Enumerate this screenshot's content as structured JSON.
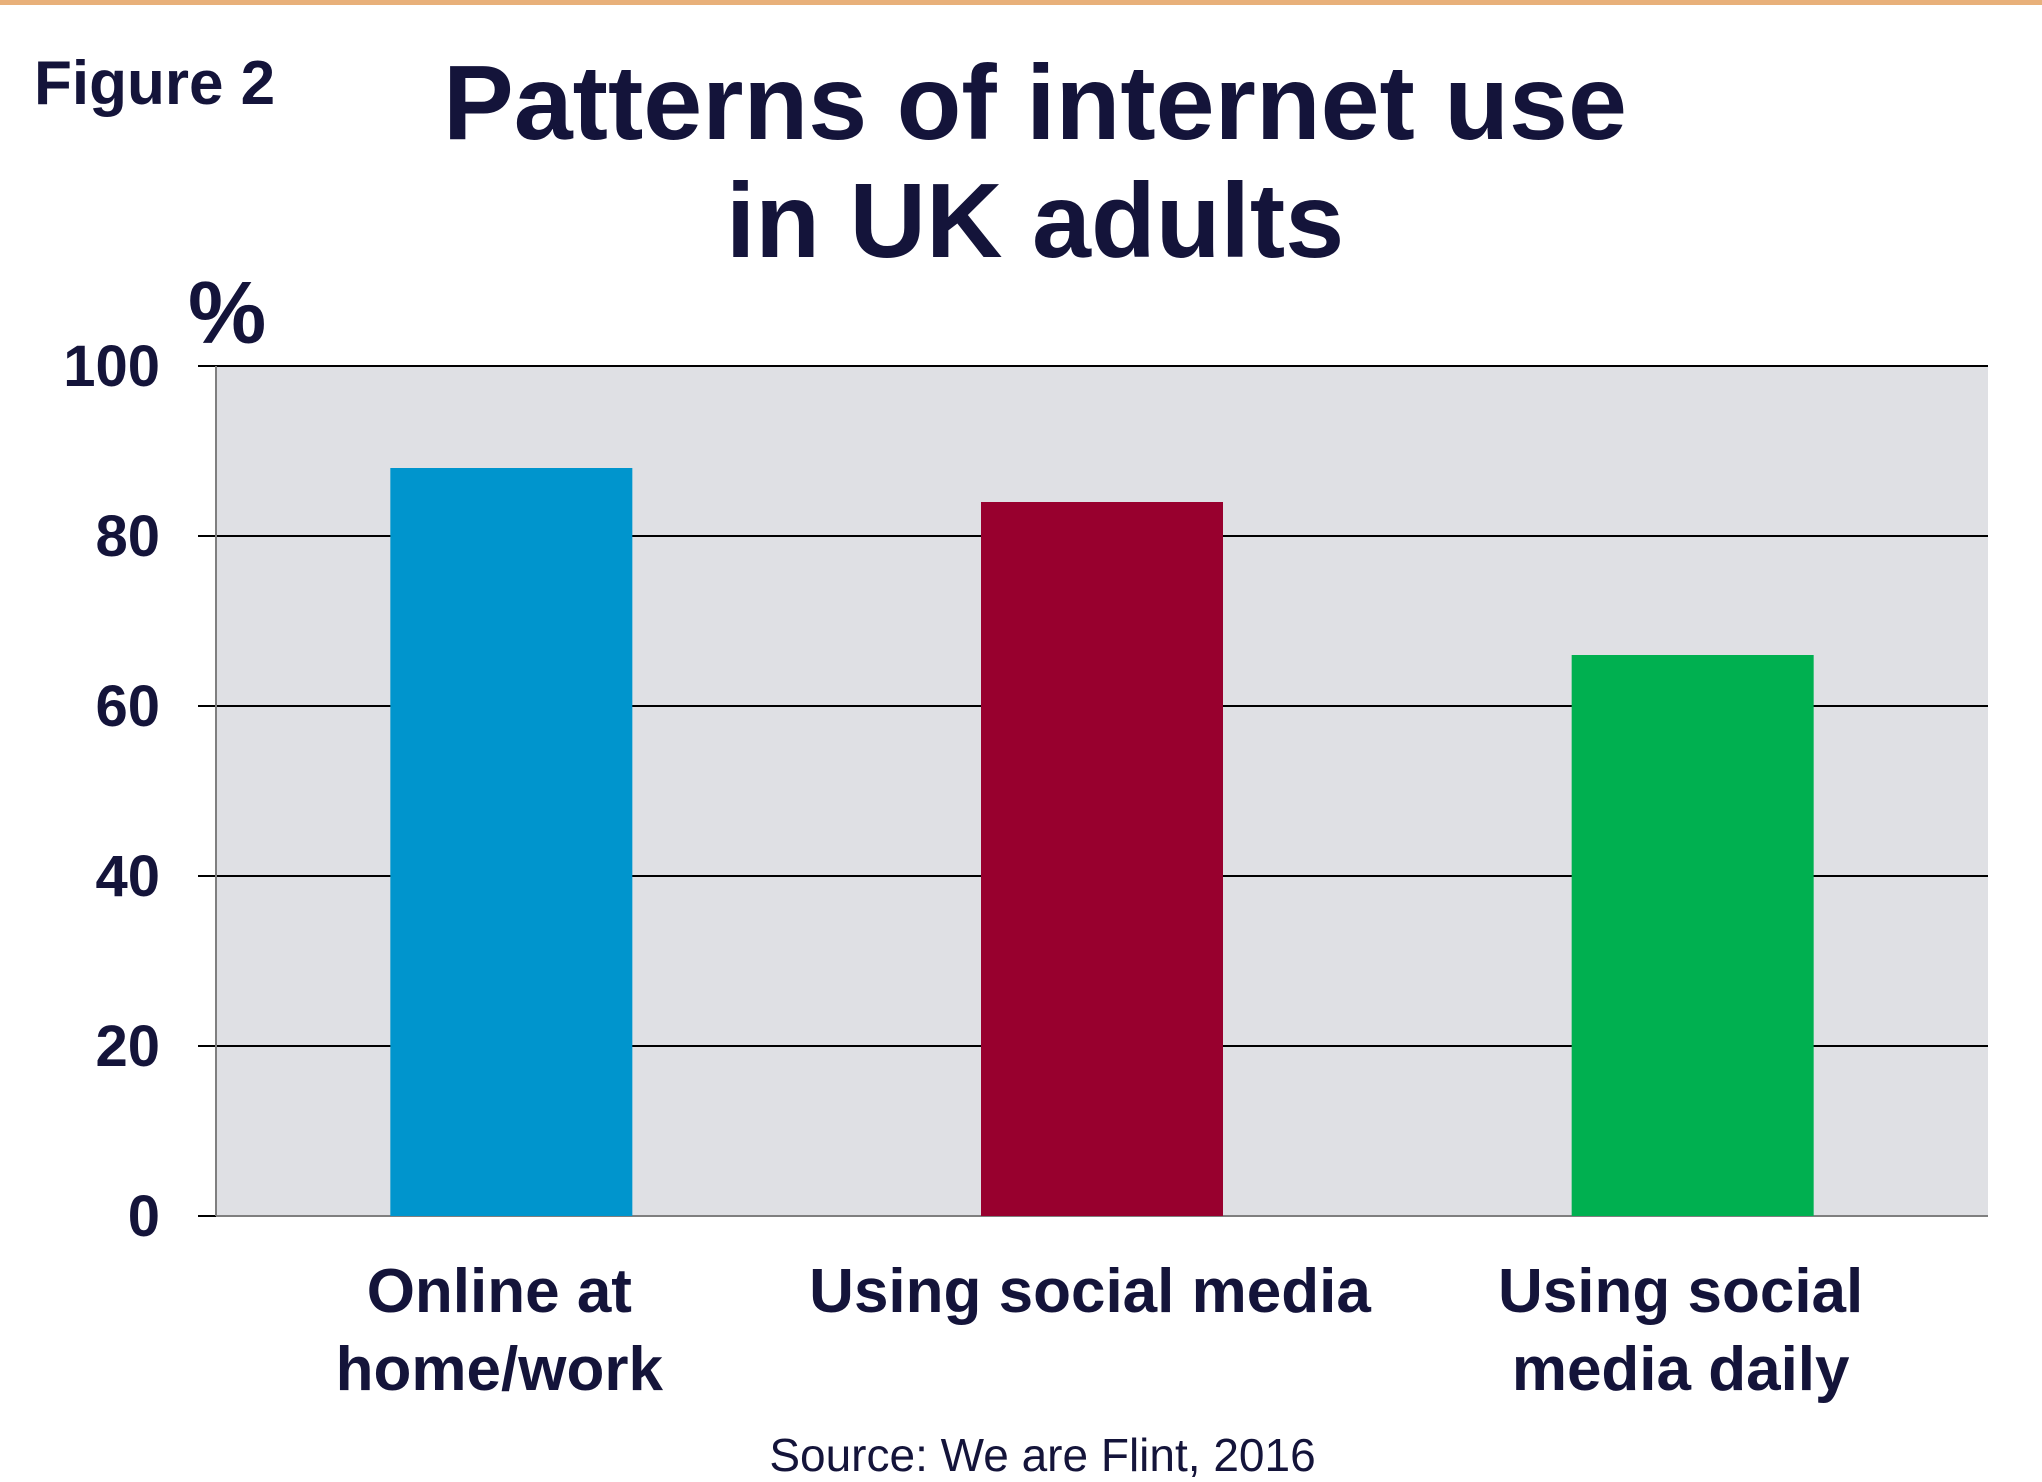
{
  "figure_label": "Figure 2",
  "title_lines": [
    "Patterns of internet use",
    "in UK adults"
  ],
  "source": "Source: We are Flint, 2016",
  "chart_data": {
    "type": "bar",
    "title": "Patterns of internet use in UK adults",
    "ylabel": "%",
    "xlabel": "",
    "ylim": [
      0,
      100
    ],
    "yticks": [
      0,
      20,
      40,
      60,
      80,
      100
    ],
    "grid": true,
    "categories": [
      [
        "Online at",
        "home/work"
      ],
      [
        "Using social media"
      ],
      [
        "Using social",
        "media daily"
      ]
    ],
    "values": [
      88,
      84,
      66
    ],
    "colors": [
      "#0095cd",
      "#98002e",
      "#00b050"
    ],
    "plot_background": "#dfe0e4",
    "gridline_color": "#000000"
  }
}
